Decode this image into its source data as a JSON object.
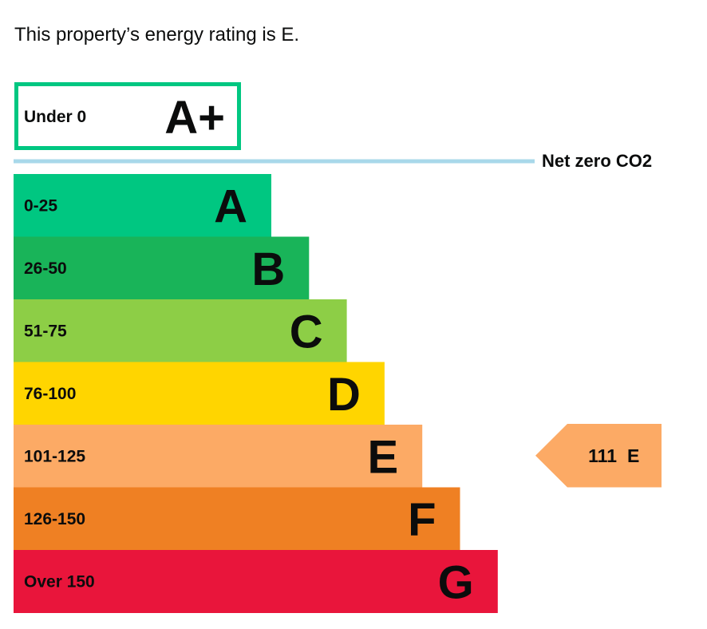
{
  "intro_text": "This property’s energy rating is E.",
  "chart_data": {
    "type": "bar",
    "aplus": {
      "range": "Under 0",
      "letter": "A+",
      "color": "#00c781"
    },
    "net_zero_label": "Net zero CO2",
    "net_zero_line_color": "#a8d8ea",
    "bands": [
      {
        "range": "0-25",
        "letter": "A",
        "color": "#00c781"
      },
      {
        "range": "26-50",
        "letter": "B",
        "color": "#19b459"
      },
      {
        "range": "51-75",
        "letter": "C",
        "color": "#8dce46"
      },
      {
        "range": "76-100",
        "letter": "D",
        "color": "#ffd500"
      },
      {
        "range": "101-125",
        "letter": "E",
        "color": "#fcaa65"
      },
      {
        "range": "126-150",
        "letter": "F",
        "color": "#ef8023"
      },
      {
        "range": "Over 150",
        "letter": "G",
        "color": "#e9153b"
      }
    ],
    "current_rating": {
      "score": "111",
      "letter": "E",
      "band_index": 4,
      "color": "#fcaa65"
    }
  }
}
